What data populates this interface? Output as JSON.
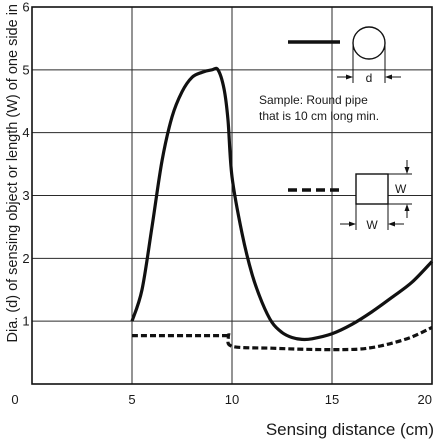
{
  "chart_data": {
    "type": "line",
    "xlabel": "Sensing distance (cm)",
    "ylabel": "Dia. (d) of sensing object or length (W) of one side in",
    "xlim": [
      0,
      20
    ],
    "ylim": [
      0,
      6
    ],
    "x_ticks": [
      "0",
      "5",
      "10",
      "15",
      "20"
    ],
    "y_ticks": [
      "1",
      "2",
      "3",
      "4",
      "5",
      "6"
    ],
    "grid": true,
    "series": [
      {
        "style": "solid",
        "legend_symbol": "circle",
        "legend_dimension": "d",
        "points": [
          [
            5.0,
            1.0
          ],
          [
            5.5,
            1.5
          ],
          [
            6.0,
            2.5
          ],
          [
            6.5,
            3.55
          ],
          [
            7.0,
            4.25
          ],
          [
            7.5,
            4.65
          ],
          [
            8.0,
            4.88
          ],
          [
            8.5,
            4.96
          ],
          [
            9.0,
            5.0
          ],
          [
            9.3,
            5.0
          ],
          [
            9.6,
            4.7
          ],
          [
            9.8,
            4.2
          ],
          [
            10.0,
            3.3
          ],
          [
            10.5,
            2.4
          ],
          [
            11.0,
            1.75
          ],
          [
            11.5,
            1.3
          ],
          [
            12.0,
            0.98
          ],
          [
            12.5,
            0.82
          ],
          [
            13.0,
            0.74
          ],
          [
            13.5,
            0.71
          ],
          [
            14.0,
            0.72
          ],
          [
            15.0,
            0.8
          ],
          [
            16.0,
            0.95
          ],
          [
            17.0,
            1.15
          ],
          [
            18.0,
            1.38
          ],
          [
            19.0,
            1.62
          ],
          [
            20.0,
            1.95
          ]
        ]
      },
      {
        "style": "dashed",
        "legend_symbol": "square",
        "legend_dimension": "W",
        "points": [
          [
            5.0,
            0.77
          ],
          [
            9.5,
            0.77
          ],
          [
            9.8,
            0.77
          ],
          [
            10.0,
            0.6
          ],
          [
            12.0,
            0.57
          ],
          [
            14.0,
            0.55
          ],
          [
            16.0,
            0.55
          ],
          [
            17.0,
            0.58
          ],
          [
            18.0,
            0.65
          ],
          [
            19.0,
            0.75
          ],
          [
            20.0,
            0.9
          ]
        ]
      }
    ],
    "annotation": "Sample: Round pipe\nthat is 10 cm long min."
  }
}
